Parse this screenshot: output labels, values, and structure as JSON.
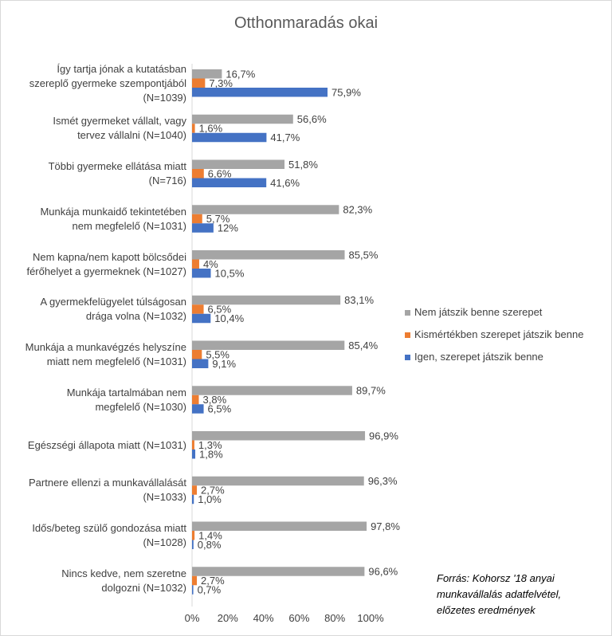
{
  "chart_data": {
    "type": "bar",
    "orientation": "horizontal",
    "title": "Otthonmaradás okai",
    "xlim": [
      0,
      100
    ],
    "x_ticks": [
      "0%",
      "20%",
      "40%",
      "60%",
      "80%",
      "100%"
    ],
    "categories": [
      [
        "Így tartja jónak a kutatásban",
        "szereplő gyermeke szempontjából",
        "(N=1039)"
      ],
      [
        "Ismét gyermeket vállalt, vagy",
        "tervez vállalni (N=1040)"
      ],
      [
        "Többi gyermeke ellátása miatt",
        "(N=716)"
      ],
      [
        "Munkája munkaidő tekintetében",
        "nem megfelelő (N=1031)"
      ],
      [
        "Nem kapna/nem kapott bölcsődei",
        "férőhelyet a gyermeknek (N=1027)"
      ],
      [
        "A gyermekfelügyelet túlságosan",
        "drága volna (N=1032)"
      ],
      [
        "Munkája a munkavégzés helyszíne",
        "miatt nem megfelelő (N=1031)"
      ],
      [
        "Munkája tartalmában nem",
        "megfelelő (N=1030)"
      ],
      [
        "Egészségi állapota miatt (N=1031)"
      ],
      [
        "Partnere ellenzi a munkavállalását",
        "(N=1033)"
      ],
      [
        "Idős/beteg szülő gondozása miatt",
        "(N=1028)"
      ],
      [
        "Nincs kedve, nem szeretne",
        "dolgozni (N=1032)"
      ]
    ],
    "series": [
      {
        "name": "Nem játszik benne szerepet",
        "color": "#a5a5a5",
        "values": [
          16.7,
          56.6,
          51.8,
          82.3,
          85.5,
          83.1,
          85.4,
          89.7,
          96.9,
          96.3,
          97.8,
          96.6
        ],
        "labels": [
          "16,7%",
          "56,6%",
          "51,8%",
          "82,3%",
          "85,5%",
          "83,1%",
          "85,4%",
          "89,7%",
          "96,9%",
          "96,3%",
          "97,8%",
          "96,6%"
        ]
      },
      {
        "name": "Kismértékben szerepet játszik benne",
        "color": "#ed7d31",
        "values": [
          7.3,
          1.6,
          6.6,
          5.7,
          4,
          6.5,
          5.5,
          3.8,
          1.3,
          2.7,
          1.4,
          2.7
        ],
        "labels": [
          "7,3%",
          "1,6%",
          "6,6%",
          "5,7%",
          "4%",
          "6,5%",
          "5,5%",
          "3,8%",
          "1,3%",
          "2,7%",
          "1,4%",
          "2,7%"
        ]
      },
      {
        "name": "Igen, szerepet játszik benne",
        "color": "#4472c4",
        "values": [
          75.9,
          41.7,
          41.6,
          12,
          10.5,
          10.4,
          9.1,
          6.5,
          1.8,
          1.0,
          0.8,
          0.7
        ],
        "labels": [
          "75,9%",
          "41,7%",
          "41,6%",
          "12%",
          "10,5%",
          "10,4%",
          "9,1%",
          "6,5%",
          "1,8%",
          "1,0%",
          "0,8%",
          "0,7%"
        ]
      }
    ],
    "legend_position": "right"
  },
  "source_lines": [
    "Forrás: Kohorsz '18 anyai",
    "munkavállalás adatfelvétel,",
    "előzetes eredmények"
  ]
}
